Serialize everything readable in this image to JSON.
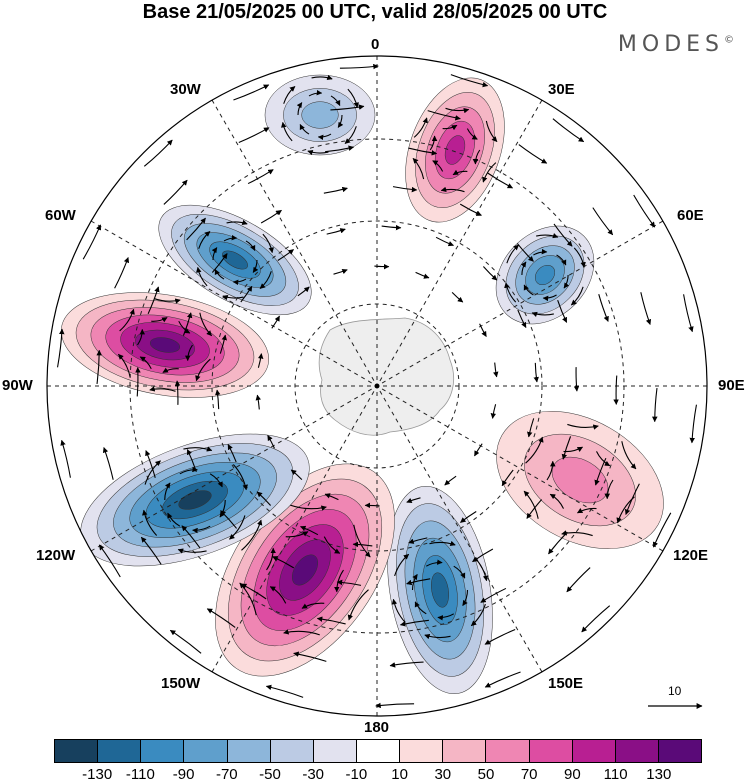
{
  "title": "Base 21/05/2025 00 UTC, valid 28/05/2025 00 UTC",
  "brand": "MODES",
  "brand_mark": "©",
  "longitude_labels": {
    "lon_0": "0",
    "lon_30e": "30E",
    "lon_60e": "60E",
    "lon_90e": "90E",
    "lon_120e": "120E",
    "lon_150e": "150E",
    "lon_180": "180",
    "lon_150w": "150W",
    "lon_120w": "120W",
    "lon_90w": "90W",
    "lon_60w": "60W",
    "lon_30w": "30W"
  },
  "reference_vector": {
    "label": "10"
  },
  "colorbar": {
    "ticks": [
      "-130",
      "-110",
      "-90",
      "-70",
      "-50",
      "-30",
      "-10",
      "10",
      "30",
      "50",
      "70",
      "90",
      "110",
      "130"
    ],
    "colors": [
      "#17405e",
      "#1f6796",
      "#3a8bc0",
      "#5f9fcc",
      "#8db6da",
      "#bccbe4",
      "#e2e2ef",
      "#ffffff",
      "#fbdcdc",
      "#f5b6c5",
      "#ef86b3",
      "#dd4da2",
      "#b81f92",
      "#8a0f86",
      "#5a0a78"
    ]
  },
  "anomaly_centers": [
    {
      "id": "c1",
      "sign": "neg",
      "level": 0.45,
      "lat_lon": "Atlantic 20W"
    },
    {
      "id": "c2",
      "sign": "pos",
      "level": 0.7,
      "lat_lon": "Africa 25E"
    },
    {
      "id": "c3",
      "sign": "neg",
      "level": 0.7,
      "lat_lon": "Indian 60E"
    },
    {
      "id": "c4",
      "sign": "pos",
      "level": 0.45,
      "lat_lon": "Indian 110E"
    },
    {
      "id": "c5",
      "sign": "neg",
      "level": 0.85,
      "lat_lon": "Pacific 160E"
    },
    {
      "id": "c6",
      "sign": "pos",
      "level": 1.0,
      "lat_lon": "Pacific 160W"
    },
    {
      "id": "c7",
      "sign": "neg",
      "level": 1.0,
      "lat_lon": "Pacific 120W"
    },
    {
      "id": "c8",
      "sign": "pos",
      "level": 0.95,
      "lat_lon": "Pacific 80W"
    },
    {
      "id": "c9",
      "sign": "neg",
      "level": 0.8,
      "lat_lon": "Atlantic 55W"
    }
  ]
}
